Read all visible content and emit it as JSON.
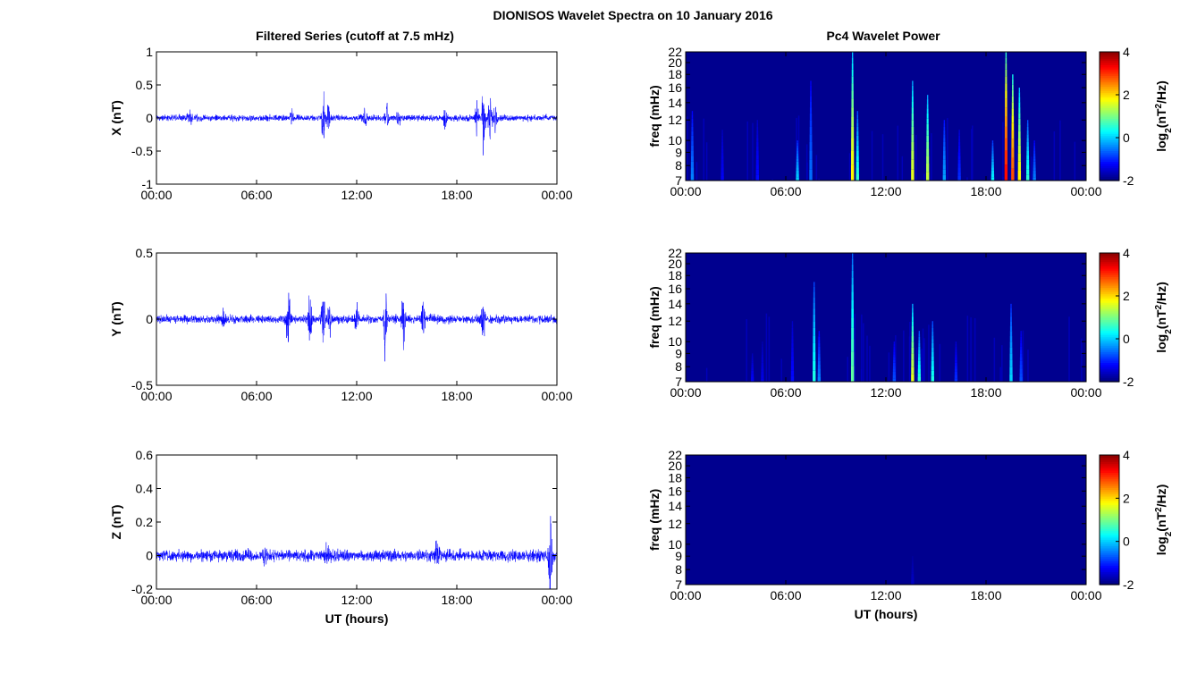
{
  "figure": {
    "title": "DIONISOS Wavelet Spectra on 10 January 2016",
    "left_column_title": "Filtered Series (cutoff at 7.5 mHz)",
    "right_column_title": "Pc4 Wavelet Power",
    "time_xlabel": "UT (hours)",
    "colors": {
      "trace": "#0000ff",
      "background": "#ffffff",
      "spectrogram_floor": "#00008f"
    }
  },
  "chart_data": [
    {
      "type": "line",
      "id": "x-series",
      "ylabel": "X (nT)",
      "ylim": [
        -1,
        1
      ],
      "yticks": [
        "-1",
        "-0.5",
        "0",
        "0.5",
        "1"
      ],
      "yticks_values": [
        -1,
        -0.5,
        0,
        0.5,
        1
      ],
      "xlim_hours": [
        0,
        24
      ],
      "xticks": [
        "00:00",
        "06:00",
        "12:00",
        "18:00",
        "00:00"
      ],
      "xticks_hours": [
        0,
        6,
        12,
        18,
        24
      ],
      "xlabel": "",
      "series": [
        {
          "color": "#0000ff",
          "noise_amplitude": 0.06,
          "bursts": [
            {
              "t": 2.0,
              "amp": 0.12
            },
            {
              "t": 8.1,
              "amp": 0.15
            },
            {
              "t": 10.0,
              "amp": 0.55
            },
            {
              "t": 10.3,
              "amp": 0.3
            },
            {
              "t": 12.5,
              "amp": 0.18
            },
            {
              "t": 13.8,
              "amp": 0.25
            },
            {
              "t": 14.5,
              "amp": 0.2
            },
            {
              "t": 17.3,
              "amp": 0.2
            },
            {
              "t": 19.2,
              "amp": 0.3
            },
            {
              "t": 19.6,
              "amp": 0.75
            },
            {
              "t": 20.0,
              "amp": 0.55
            },
            {
              "t": 20.3,
              "amp": 0.3
            }
          ]
        }
      ]
    },
    {
      "type": "line",
      "id": "y-series",
      "ylabel": "Y (nT)",
      "ylim": [
        -0.5,
        0.5
      ],
      "yticks": [
        "-0.5",
        "0",
        "0.5"
      ],
      "yticks_values": [
        -0.5,
        0,
        0.5
      ],
      "xlim_hours": [
        0,
        24
      ],
      "xticks": [
        "00:00",
        "06:00",
        "12:00",
        "18:00",
        "00:00"
      ],
      "xticks_hours": [
        0,
        6,
        12,
        18,
        24
      ],
      "xlabel": "",
      "series": [
        {
          "color": "#0000ff",
          "noise_amplitude": 0.04,
          "bursts": [
            {
              "t": 4.0,
              "amp": 0.1
            },
            {
              "t": 7.9,
              "amp": 0.32
            },
            {
              "t": 9.2,
              "amp": 0.25
            },
            {
              "t": 10.0,
              "amp": 0.38
            },
            {
              "t": 10.4,
              "amp": 0.25
            },
            {
              "t": 12.0,
              "amp": 0.15
            },
            {
              "t": 13.7,
              "amp": 0.3
            },
            {
              "t": 14.8,
              "amp": 0.3
            },
            {
              "t": 16.0,
              "amp": 0.2
            },
            {
              "t": 19.6,
              "amp": 0.2
            }
          ]
        }
      ]
    },
    {
      "type": "line",
      "id": "z-series",
      "ylabel": "Z (nT)",
      "ylim": [
        -0.2,
        0.6
      ],
      "yticks": [
        "-0.2",
        "0",
        "0.2",
        "0.4",
        "0.6"
      ],
      "yticks_values": [
        -0.2,
        0,
        0.2,
        0.4,
        0.6
      ],
      "xlim_hours": [
        0,
        24
      ],
      "xticks": [
        "00:00",
        "06:00",
        "12:00",
        "18:00",
        "00:00"
      ],
      "xticks_hours": [
        0,
        6,
        12,
        18,
        24
      ],
      "xlabel": "UT (hours)",
      "series": [
        {
          "color": "#0000ff",
          "noise_amplitude": 0.045,
          "bursts": [
            {
              "t": 6.5,
              "amp": 0.08
            },
            {
              "t": 10.2,
              "amp": 0.1
            },
            {
              "t": 16.8,
              "amp": 0.12
            },
            {
              "t": 23.6,
              "amp": 0.35
            }
          ]
        }
      ]
    },
    {
      "type": "heatmap",
      "id": "x-wavelet",
      "ylabel": "freq (mHz)",
      "yticks": [
        "7",
        "8",
        "9",
        "10",
        "12",
        "14",
        "16",
        "18",
        "20",
        "22"
      ],
      "yticks_values": [
        7,
        8,
        9,
        10,
        12,
        14,
        16,
        18,
        20,
        22
      ],
      "ylim": [
        7,
        22
      ],
      "xlim_hours": [
        0,
        24
      ],
      "xticks": [
        "00:00",
        "06:00",
        "12:00",
        "18:00",
        "00:00"
      ],
      "xticks_hours": [
        0,
        6,
        12,
        18,
        24
      ],
      "xlabel": "",
      "colorbar": {
        "label": "log2(nT2/Hz)",
        "range": [
          -2,
          4
        ],
        "ticks": [
          "4",
          "2",
          "0",
          "-2"
        ],
        "ticks_values": [
          4,
          2,
          0,
          -2
        ]
      },
      "features": [
        {
          "t": 0.4,
          "fmax": 13,
          "level": -0.5
        },
        {
          "t": 2.2,
          "fmax": 11,
          "level": -1.3
        },
        {
          "t": 4.3,
          "fmax": 12,
          "level": -1.2
        },
        {
          "t": 6.7,
          "fmax": 10,
          "level": 0
        },
        {
          "t": 7.5,
          "fmax": 17,
          "level": -0.6
        },
        {
          "t": 10.0,
          "fmax": 22,
          "level": 1.8
        },
        {
          "t": 10.3,
          "fmax": 13,
          "level": 0.5
        },
        {
          "t": 13.6,
          "fmax": 17,
          "level": 1.6
        },
        {
          "t": 14.5,
          "fmax": 15,
          "level": 1.4
        },
        {
          "t": 15.5,
          "fmax": 12,
          "level": -0.3
        },
        {
          "t": 16.4,
          "fmax": 11,
          "level": -1
        },
        {
          "t": 18.4,
          "fmax": 10,
          "level": 0.2
        },
        {
          "t": 19.2,
          "fmax": 22,
          "level": 3.2
        },
        {
          "t": 19.6,
          "fmax": 18,
          "level": 2.8
        },
        {
          "t": 20.0,
          "fmax": 16,
          "level": 1.8
        },
        {
          "t": 20.5,
          "fmax": 12,
          "level": 0.5
        },
        {
          "t": 20.9,
          "fmax": 10,
          "level": -0.5
        }
      ]
    },
    {
      "type": "heatmap",
      "id": "y-wavelet",
      "ylabel": "freq (mHz)",
      "yticks": [
        "7",
        "8",
        "9",
        "10",
        "12",
        "14",
        "16",
        "18",
        "20",
        "22"
      ],
      "yticks_values": [
        7,
        8,
        9,
        10,
        12,
        14,
        16,
        18,
        20,
        22
      ],
      "ylim": [
        7,
        22
      ],
      "xlim_hours": [
        0,
        24
      ],
      "xticks": [
        "00:00",
        "06:00",
        "12:00",
        "18:00",
        "00:00"
      ],
      "xticks_hours": [
        0,
        6,
        12,
        18,
        24
      ],
      "xlabel": "",
      "colorbar": {
        "label": "log2(nT2/Hz)",
        "range": [
          -2,
          4
        ],
        "ticks": [
          "4",
          "2",
          "0",
          "-2"
        ],
        "ticks_values": [
          4,
          2,
          0,
          -2
        ]
      },
      "features": [
        {
          "t": 4.0,
          "fmax": 9,
          "level": -1.3
        },
        {
          "t": 4.6,
          "fmax": 10,
          "level": -1.4
        },
        {
          "t": 6.4,
          "fmax": 12,
          "level": -1.2
        },
        {
          "t": 7.7,
          "fmax": 17,
          "level": 0.4
        },
        {
          "t": 8.0,
          "fmax": 11,
          "level": -0.5
        },
        {
          "t": 10.0,
          "fmax": 22,
          "level": 0.8
        },
        {
          "t": 12.5,
          "fmax": 10,
          "level": -0.8
        },
        {
          "t": 13.6,
          "fmax": 14,
          "level": 1.6
        },
        {
          "t": 14.0,
          "fmax": 11,
          "level": 0.5
        },
        {
          "t": 14.8,
          "fmax": 12,
          "level": 0.4
        },
        {
          "t": 16.2,
          "fmax": 10,
          "level": -1
        },
        {
          "t": 19.5,
          "fmax": 14,
          "level": 0
        },
        {
          "t": 20.1,
          "fmax": 11,
          "level": -0.8
        }
      ]
    },
    {
      "type": "heatmap",
      "id": "z-wavelet",
      "ylabel": "freq (mHz)",
      "yticks": [
        "7",
        "8",
        "9",
        "10",
        "12",
        "14",
        "16",
        "18",
        "20",
        "22"
      ],
      "yticks_values": [
        7,
        8,
        9,
        10,
        12,
        14,
        16,
        18,
        20,
        22
      ],
      "ylim": [
        7,
        22
      ],
      "xlim_hours": [
        0,
        24
      ],
      "xticks": [
        "00:00",
        "06:00",
        "12:00",
        "18:00",
        "00:00"
      ],
      "xticks_hours": [
        0,
        6,
        12,
        18,
        24
      ],
      "xlabel": "UT (hours)",
      "colorbar": {
        "label": "log2(nT2/Hz)",
        "range": [
          -2,
          4
        ],
        "ticks": [
          "4",
          "2",
          "0",
          "-2"
        ],
        "ticks_values": [
          4,
          2,
          0,
          -2
        ]
      },
      "features": [
        {
          "t": 13.6,
          "fmax": 9,
          "level": -1.6
        }
      ]
    }
  ]
}
